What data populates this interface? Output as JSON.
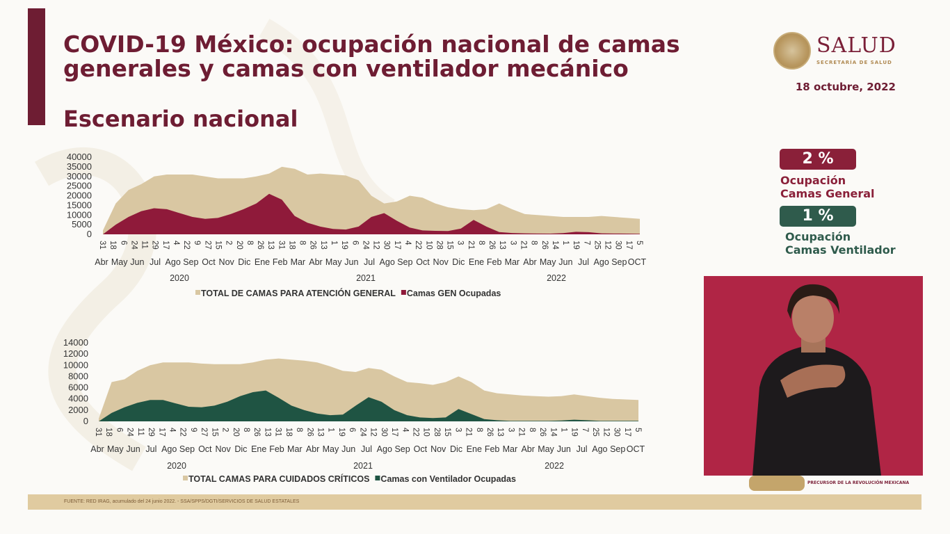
{
  "header": {
    "title_line1": "COVID-19 México: ocupación nacional de camas",
    "title_line2": "generales y camas con ventilador mecánico",
    "subtitle": "Escenario nacional",
    "date": "18 octubre, 2022"
  },
  "logo": {
    "word": "SALUD",
    "sub": "SECRETARÍA DE SALUD"
  },
  "indicators": {
    "general": {
      "value": "2 %",
      "label_line1": "Ocupación",
      "label_line2": "Camas General",
      "color": "#8a2039"
    },
    "ventilador": {
      "value": "1 %",
      "label_line1": "Ocupación",
      "label_line2": "Camas Ventilador",
      "color": "#2f5b4c"
    }
  },
  "interpreter": {
    "caption": "PRECURSOR DE LA REVOLUCIÓN MEXICANA"
  },
  "footer": {
    "source": "FUENTE: RED IRAG, acumulado del 24 junio 2022. - SSA/SPPS/DGTI/SERVICIOS DE SALUD ESTATALES"
  },
  "chart_data": [
    {
      "type": "area",
      "day_labels": [
        "31",
        "18",
        "6",
        "24",
        "11",
        "29",
        "17",
        "4",
        "22",
        "9",
        "27",
        "15",
        "2",
        "20",
        "8",
        "26",
        "13",
        "31",
        "18",
        "8",
        "26",
        "13",
        "1",
        "19",
        "6",
        "24",
        "12",
        "30",
        "17",
        "4",
        "22",
        "10",
        "28",
        "15",
        "3",
        "21",
        "8",
        "26",
        "13",
        "3",
        "21",
        "8",
        "26",
        "14",
        "1",
        "19",
        "7",
        "25",
        "12",
        "30",
        "17",
        "5"
      ],
      "month_labels": [
        "Abr",
        "May",
        "Jun",
        "Jul",
        "Ago",
        "Sep",
        "Oct",
        "Nov",
        "Dic",
        "Ene",
        "Feb",
        "Mar",
        "Abr",
        "May",
        "Jun",
        "Jul",
        "Ago",
        "Sep",
        "Oct",
        "Nov",
        "Dic",
        "Ene",
        "Feb",
        "Mar",
        "Abr",
        "May",
        "Jun",
        "Jul",
        "Ago",
        "Sep",
        "OCT"
      ],
      "years": [
        "2020",
        "2021",
        "2022"
      ],
      "y_ticks": [
        "0",
        "5000",
        "10000",
        "15000",
        "20000",
        "25000",
        "30000",
        "35000",
        "40000"
      ],
      "ylim": [
        0,
        40000
      ],
      "series": [
        {
          "name": "TOTAL DE CAMAS PARA ATENCIÓN GENERAL",
          "color": "#d9c7a2",
          "values": [
            2000,
            16000,
            23000,
            26000,
            30000,
            31000,
            31000,
            31000,
            30000,
            29000,
            29000,
            29000,
            30000,
            31500,
            35000,
            34000,
            31000,
            31500,
            31000,
            30500,
            28000,
            20000,
            16000,
            17000,
            20000,
            19000,
            16000,
            14000,
            13000,
            12500,
            13000,
            16000,
            13000,
            10500,
            10000,
            9500,
            9000,
            9000,
            9000,
            9500,
            9000,
            8500,
            8000
          ]
        },
        {
          "name": "Camas GEN Ocupadas",
          "color": "#8f1a3a",
          "values": [
            0,
            5000,
            9000,
            12000,
            13500,
            13000,
            11000,
            9000,
            8000,
            8500,
            10500,
            13000,
            16000,
            21000,
            18000,
            9500,
            6000,
            4000,
            2800,
            2500,
            4000,
            9000,
            11000,
            7000,
            3500,
            2000,
            1800,
            1700,
            3000,
            7500,
            4000,
            1200,
            700,
            500,
            400,
            350,
            600,
            1300,
            1100,
            500,
            400,
            350,
            300
          ]
        }
      ],
      "xlabel": "",
      "ylabel": ""
    },
    {
      "type": "area",
      "day_labels": [
        "31",
        "18",
        "6",
        "24",
        "11",
        "29",
        "17",
        "4",
        "22",
        "9",
        "27",
        "15",
        "2",
        "20",
        "8",
        "26",
        "13",
        "31",
        "18",
        "8",
        "26",
        "13",
        "1",
        "19",
        "6",
        "24",
        "12",
        "30",
        "17",
        "4",
        "22",
        "10",
        "28",
        "15",
        "3",
        "21",
        "8",
        "26",
        "13",
        "3",
        "21",
        "8",
        "26",
        "14",
        "1",
        "19",
        "7",
        "25",
        "12",
        "30",
        "17",
        "5"
      ],
      "month_labels": [
        "Abr",
        "May",
        "Jun",
        "Jul",
        "Ago",
        "Sep",
        "Oct",
        "Nov",
        "Dic",
        "Ene",
        "Feb",
        "Mar",
        "Abr",
        "May",
        "Jun",
        "Jul",
        "Ago",
        "Sep",
        "Oct",
        "Nov",
        "Dic",
        "Ene",
        "Feb",
        "Mar",
        "Abr",
        "May",
        "Jun",
        "Jul",
        "Ago",
        "Sep",
        "OCT"
      ],
      "years": [
        "2020",
        "2021",
        "2022"
      ],
      "y_ticks": [
        "0",
        "2000",
        "4000",
        "6000",
        "8000",
        "10000",
        "12000",
        "14000"
      ],
      "ylim": [
        0,
        14000
      ],
      "series": [
        {
          "name": "TOTAL CAMAS PARA CUIDADOS CRÍTICOS",
          "color": "#d9c7a2",
          "values": [
            500,
            7000,
            7500,
            9000,
            10000,
            10500,
            10500,
            10500,
            10300,
            10200,
            10200,
            10200,
            10500,
            11000,
            11200,
            11000,
            10800,
            10500,
            9800,
            9000,
            8800,
            9500,
            9200,
            8000,
            7000,
            6800,
            6500,
            7000,
            8000,
            7000,
            5500,
            5000,
            4800,
            4600,
            4500,
            4400,
            4500,
            4800,
            4500,
            4200,
            4000,
            3900,
            3800
          ]
        },
        {
          "name": "Camas con Ventilador Ocupadas",
          "color": "#1f5443",
          "values": [
            0,
            1500,
            2500,
            3300,
            3800,
            3800,
            3200,
            2600,
            2500,
            2800,
            3500,
            4500,
            5200,
            5500,
            4200,
            2800,
            2000,
            1400,
            1100,
            1200,
            2800,
            4300,
            3500,
            2000,
            1100,
            700,
            600,
            700,
            2200,
            1300,
            400,
            200,
            100,
            100,
            100,
            100,
            150,
            300,
            200,
            100,
            100,
            100,
            100
          ]
        }
      ],
      "xlabel": "",
      "ylabel": ""
    }
  ]
}
